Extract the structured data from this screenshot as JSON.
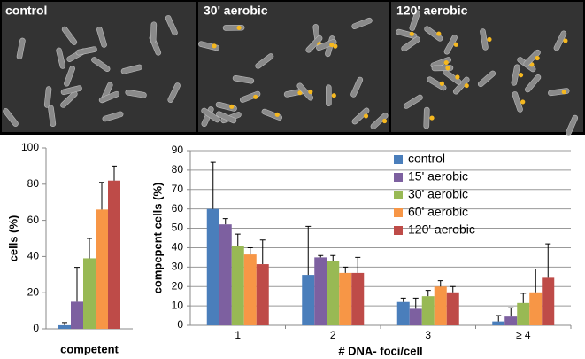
{
  "panels": [
    "control",
    "30' aerobic",
    "120' aerobic"
  ],
  "chart_data": [
    {
      "type": "bar",
      "y_label": "cells (%)",
      "categories": [
        "competent"
      ],
      "series": [
        {
          "color": "#4a7ebb",
          "values": [
            2
          ],
          "errors": [
            1.5
          ]
        },
        {
          "color": "#7d60a0",
          "values": [
            15
          ],
          "errors": [
            19
          ]
        },
        {
          "color": "#98b954",
          "values": [
            39
          ],
          "errors": [
            11
          ]
        },
        {
          "color": "#f79646",
          "values": [
            66
          ],
          "errors": [
            15
          ]
        },
        {
          "color": "#be4b48",
          "values": [
            82
          ],
          "errors": [
            8
          ]
        }
      ],
      "ylim": [
        0,
        100
      ],
      "yticks": [
        0,
        20,
        40,
        60,
        80,
        100
      ],
      "grid": false
    },
    {
      "type": "bar",
      "y_label": "compepent cells (%)",
      "x_label": "# DNA- foci/cell",
      "categories": [
        "1",
        "2",
        "3",
        "≥ 4"
      ],
      "series": [
        {
          "name": "control",
          "color": "#4a7ebb",
          "values": [
            60,
            26,
            12,
            2
          ],
          "errors": [
            24,
            25,
            2,
            3
          ]
        },
        {
          "name": "15' aerobic",
          "color": "#7d60a0",
          "values": [
            52,
            35,
            8.5,
            4.5
          ],
          "errors": [
            3,
            1,
            5.5,
            4.5
          ]
        },
        {
          "name": "30' aerobic",
          "color": "#98b954",
          "values": [
            41,
            33,
            15,
            11.5
          ],
          "errors": [
            6,
            3,
            3,
            5
          ]
        },
        {
          "name": "60' aerobic",
          "color": "#f79646",
          "values": [
            36.5,
            27,
            20,
            17
          ],
          "errors": [
            3.5,
            3,
            3,
            12
          ]
        },
        {
          "name": "120' aerobic",
          "color": "#be4b48",
          "values": [
            31.5,
            27,
            17,
            24.5
          ],
          "errors": [
            12.5,
            8,
            3,
            17.5
          ]
        }
      ],
      "ylim": [
        0,
        90
      ],
      "yticks": [
        0,
        10,
        20,
        30,
        40,
        50,
        60,
        70,
        80,
        90
      ],
      "grid": true,
      "legend": "top-right"
    }
  ]
}
